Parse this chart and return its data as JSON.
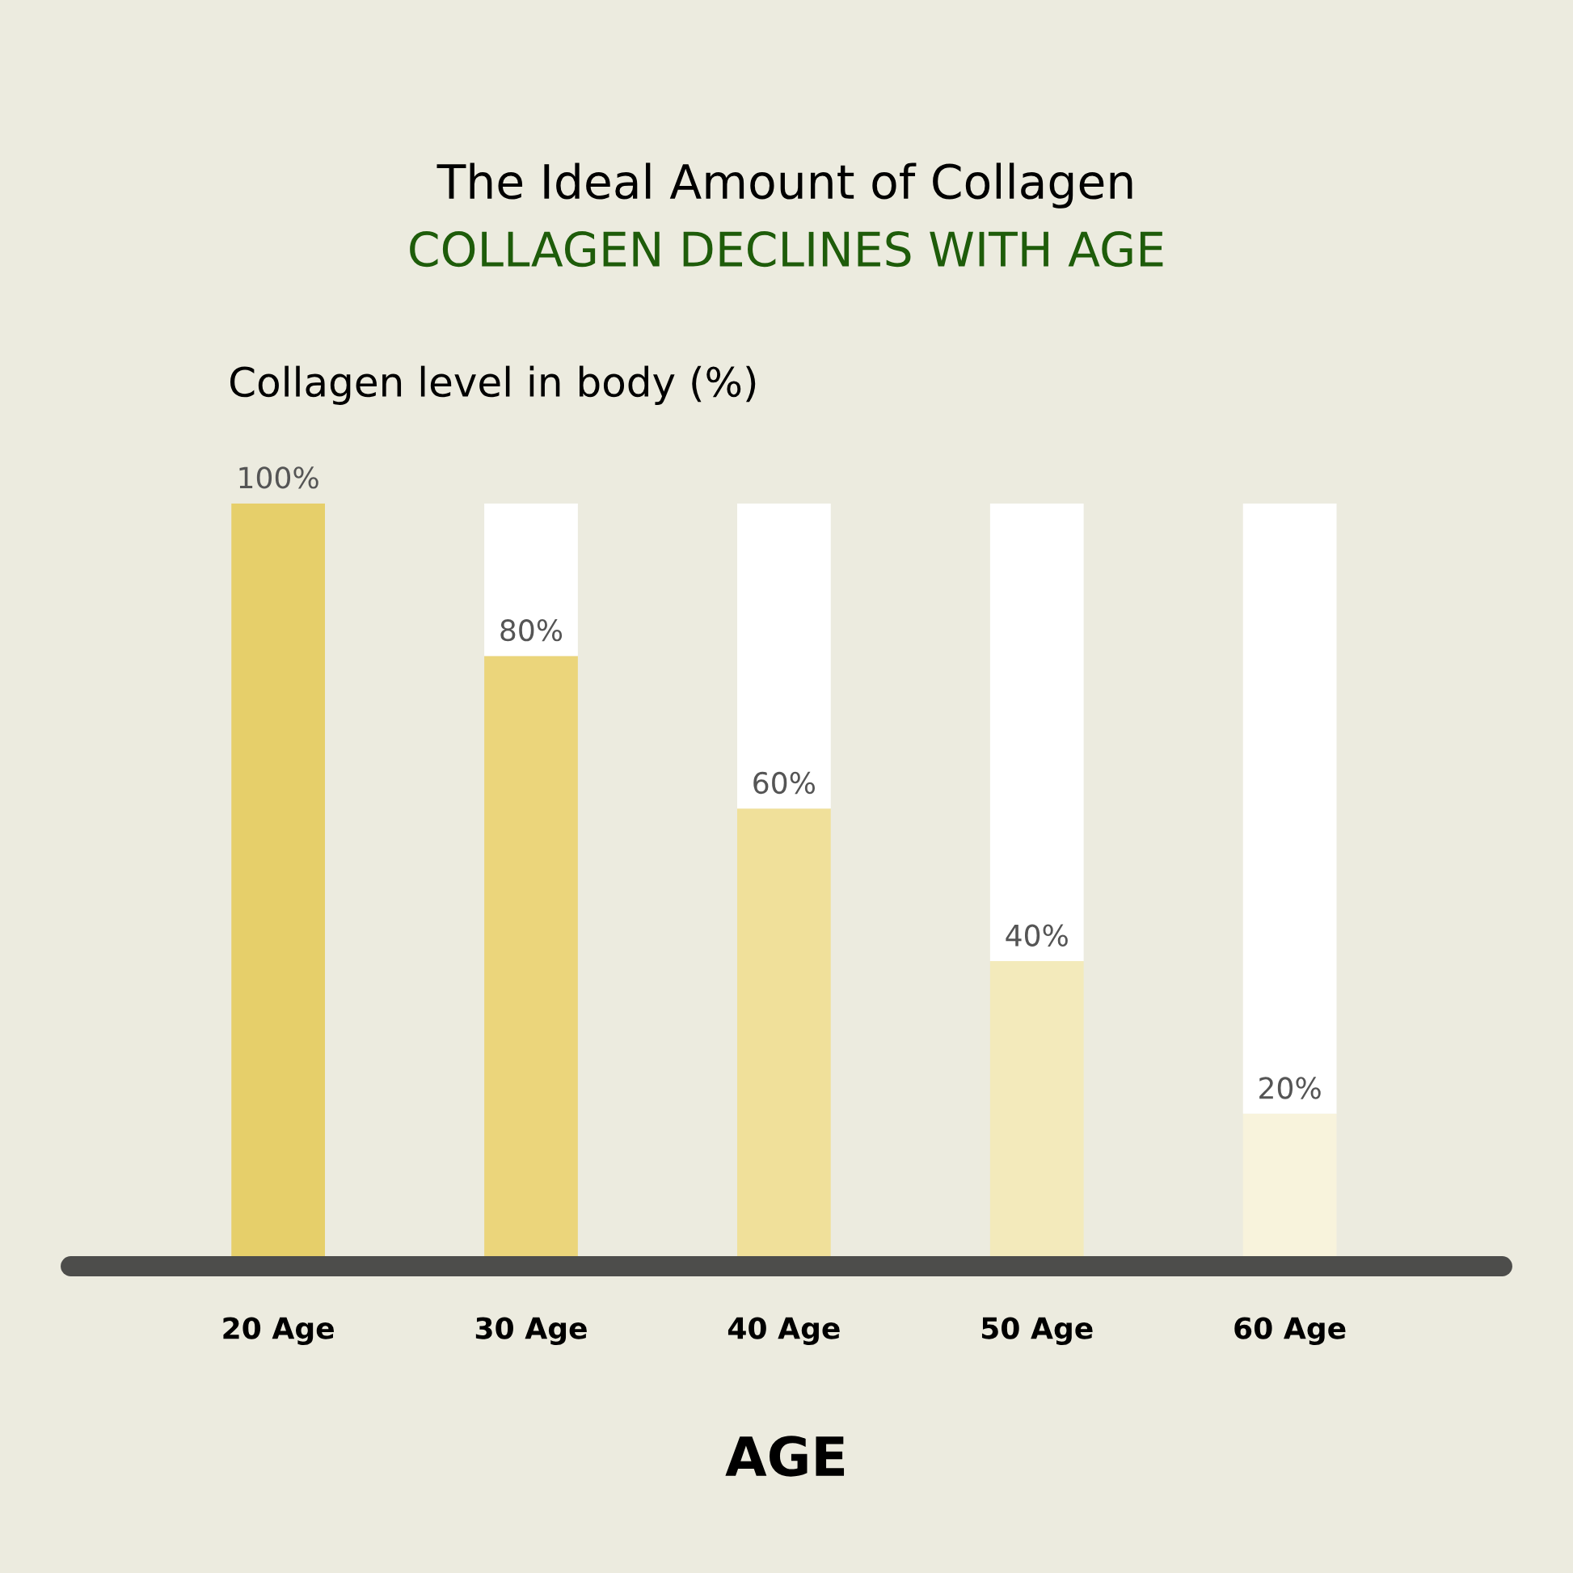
{
  "chart_data": {
    "type": "bar",
    "title": "The Ideal Amount of Collagen",
    "subtitle": "COLLAGEN DECLINES WITH AGE",
    "ylabel": "Collagen level in body (%)",
    "xlabel": "AGE",
    "categories": [
      "20 Age",
      "30 Age",
      "40 Age",
      "50 Age",
      "60 Age"
    ],
    "stacked": true,
    "series": [
      {
        "colors": [
          "#e6cf6a",
          "#ebd57b",
          "#f0e09a",
          "#f3eabb",
          "#f8f3dc"
        ],
        "values": [
          100,
          80,
          60,
          40,
          20
        ],
        "value_labels": [
          "100%",
          "80%",
          "60%",
          "40%",
          "20%"
        ]
      },
      {
        "color": "#ffffff",
        "values": [
          0,
          20,
          40,
          60,
          80
        ]
      }
    ],
    "ylim": [
      0,
      100
    ],
    "tick_labels": "x",
    "grid": false,
    "legend": false
  }
}
